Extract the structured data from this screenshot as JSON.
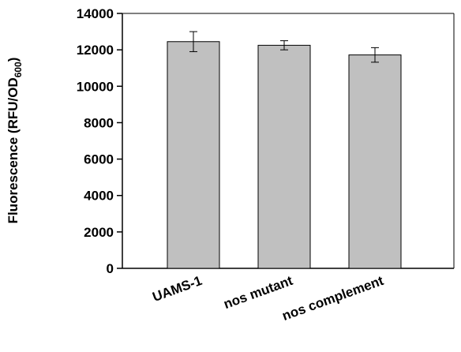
{
  "chart_data": {
    "type": "bar",
    "categories": [
      "UAMS-1",
      "nos mutant",
      "nos complement"
    ],
    "values": [
      12450,
      12250,
      11720
    ],
    "errors": [
      550,
      250,
      400
    ],
    "ylabel": "Fluorescence (RFU/OD600)",
    "ylabel_main": "Fluorescence (RFU/OD",
    "ylabel_sub": "600",
    "ylabel_end": ")",
    "ylim": [
      0,
      14000
    ],
    "yticks": [
      0,
      2000,
      4000,
      6000,
      8000,
      10000,
      12000,
      14000
    ],
    "bar_color": "#c0c0c0",
    "grid": false,
    "legend": "none"
  }
}
